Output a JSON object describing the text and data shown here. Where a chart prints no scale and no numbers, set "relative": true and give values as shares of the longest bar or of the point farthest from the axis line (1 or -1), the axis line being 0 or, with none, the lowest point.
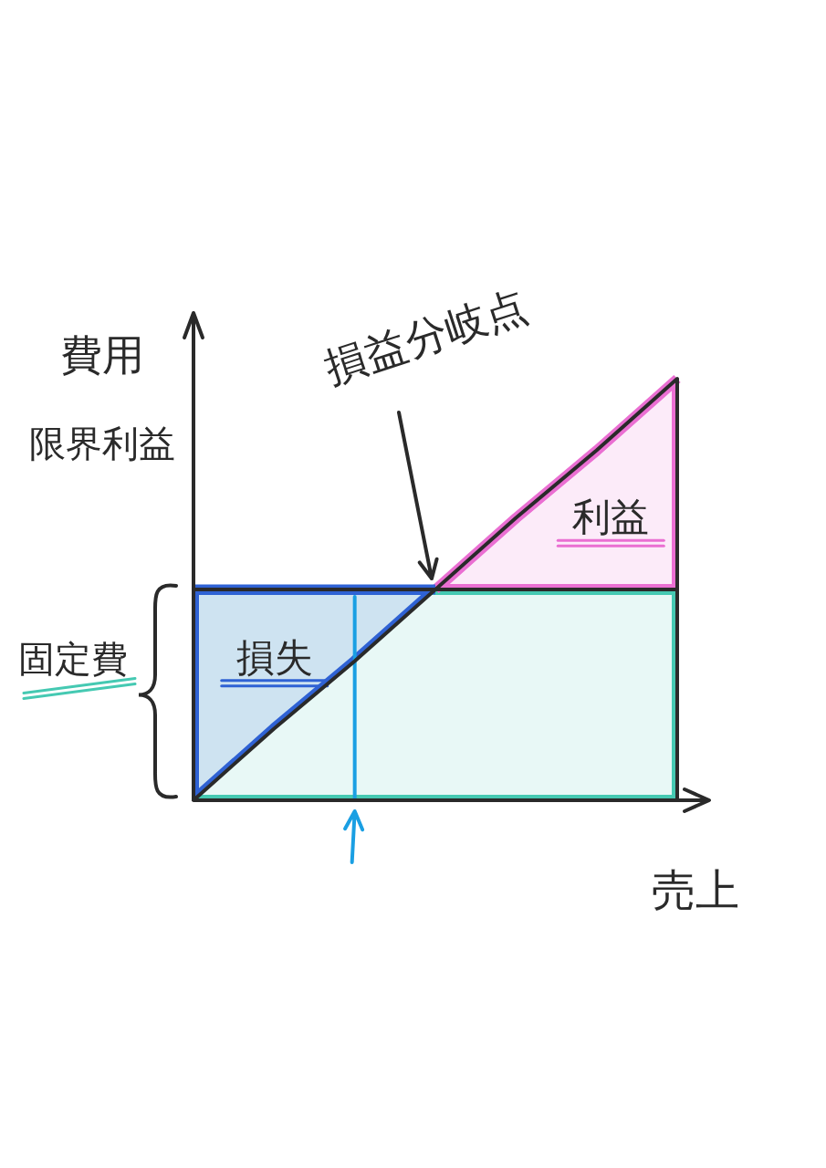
{
  "chart_data": {
    "type": "line",
    "relative": true,
    "ylabel": "費用",
    "xlabel": "売上",
    "categories": [
      null,
      null,
      null,
      null,
      null,
      null,
      null
    ],
    "series": [
      {
        "color": "#2a2a2a",
        "values": [
          0,
          0.17,
          0.33,
          0.5,
          0.67,
          0.83,
          1
        ]
      },
      {
        "color": "#2a2a2a",
        "values": [
          0.5,
          0.5,
          0.5,
          0.5,
          0.5,
          0.5,
          0.5
        ]
      },
      {
        "name": "利益",
        "type": "line",
        "color": "#ea6fd2",
        "values": [
          null,
          null,
          null,
          0.5,
          0.67,
          0.83,
          1
        ],
        "lower": [
          null,
          null,
          null,
          0.5,
          0.5,
          0.5,
          0.5
        ],
        "upper": [
          null,
          null,
          null,
          0.5,
          0.67,
          0.83,
          1
        ]
      },
      {
        "name": "損失",
        "type": "line",
        "color": "#2f62d4",
        "values": [
          0.5,
          0.5,
          0.5,
          0.5,
          null,
          null,
          null
        ],
        "lower": [
          0,
          0.17,
          0.33,
          0.5,
          null,
          null,
          null
        ],
        "upper": [
          0.5,
          0.5,
          0.5,
          0.5,
          null,
          null,
          null
        ]
      }
    ],
    "bands": [
      {
        "axis": "y",
        "from": 0,
        "to": 0.5,
        "label": "固定費",
        "color": "#45c9b2"
      }
    ],
    "annotations": [
      "損益分岐点",
      "限界利益"
    ]
  }
}
